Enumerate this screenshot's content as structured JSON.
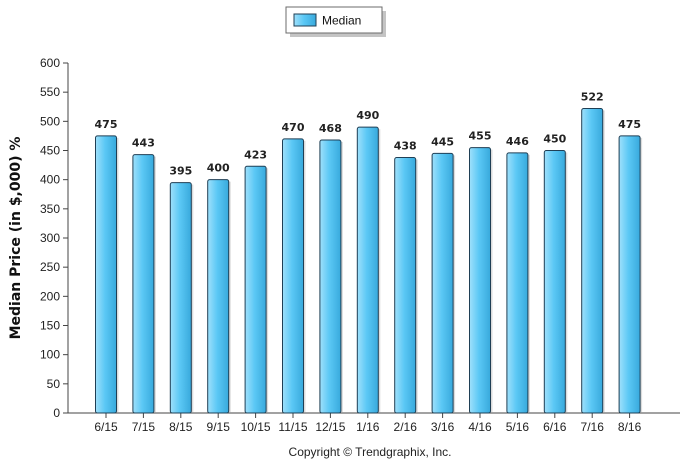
{
  "chart_data": {
    "type": "bar",
    "categories": [
      "6/15",
      "7/15",
      "8/15",
      "9/15",
      "10/15",
      "11/15",
      "12/15",
      "1/16",
      "2/16",
      "3/16",
      "4/16",
      "5/16",
      "6/16",
      "7/16",
      "8/16"
    ],
    "series": [
      {
        "name": "Median",
        "values": [
          475,
          443,
          395,
          400,
          423,
          470,
          468,
          490,
          438,
          445,
          455,
          446,
          450,
          522,
          475
        ]
      }
    ],
    "ylabel": "Median Price (in $,000) %",
    "ylim": [
      0,
      600
    ],
    "yticks": [
      0,
      50,
      100,
      150,
      200,
      250,
      300,
      350,
      400,
      450,
      500,
      550,
      600
    ],
    "legend_position": "top-center",
    "grid": false,
    "data_labels": true,
    "colors": {
      "bar_fill": "#5bc8f5",
      "bar_stroke": "#1f3f55",
      "axis": "#444444"
    }
  },
  "footer": {
    "copyright": "Copyright © Trendgraphix, Inc."
  }
}
